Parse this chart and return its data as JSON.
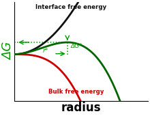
{
  "xlabel": "radius",
  "ylabel": "ΔG",
  "bg_color": "#ffffff",
  "interface_label": "Interface free energy",
  "bulk_label": "Bulk free energy",
  "dg_star_label": "ΔG*",
  "r_star_label": "r*",
  "line_color_total": "#006600",
  "line_color_bulk": "#cc0000",
  "line_color_interface": "#111111",
  "annotation_color": "#009900",
  "A": 1.0,
  "B": -0.6,
  "r_max": 2.8,
  "ylim_min": -1.6,
  "ylim_max": 1.8
}
